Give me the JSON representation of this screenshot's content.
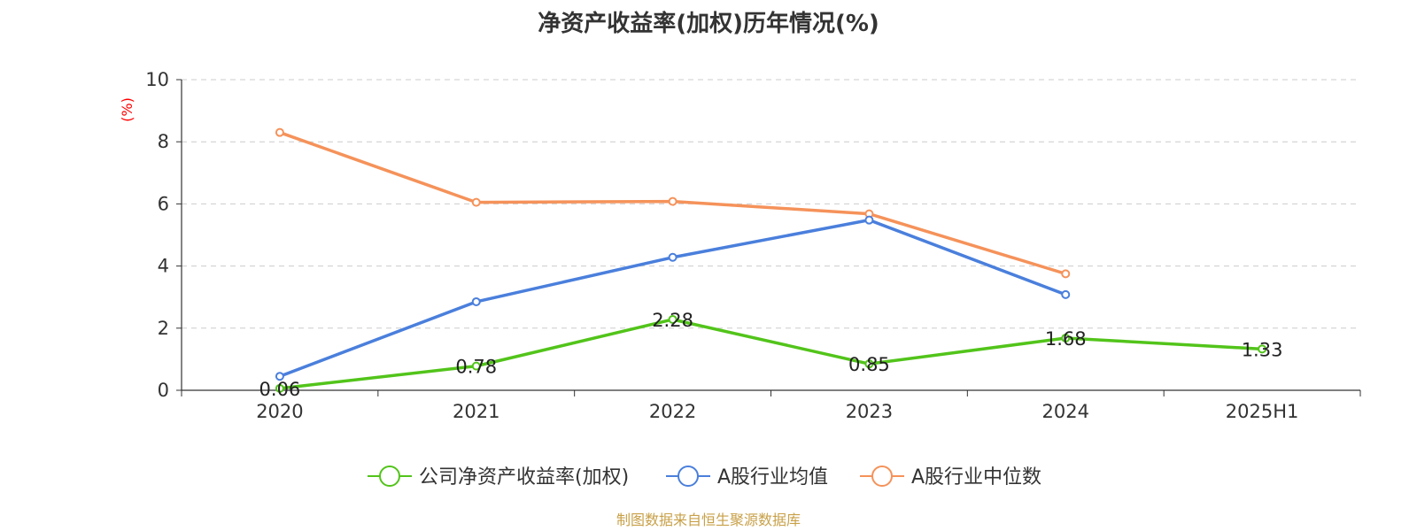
{
  "colors": {
    "company": "#52c41a",
    "industry_mean": "#4a7fdc",
    "industry_median": "#f5925a",
    "axis": "#333333",
    "grid": "#cccccc",
    "ylabel": "#ff0000",
    "source": "#c8a048"
  },
  "chart_data": {
    "type": "line",
    "title": "净资产收益率(加权)历年情况(%)",
    "ylabel": "(%)",
    "xlabel": "",
    "categories": [
      "2020",
      "2021",
      "2022",
      "2023",
      "2024",
      "2025H1"
    ],
    "ylim": [
      0,
      10
    ],
    "yticks": [
      0,
      2,
      4,
      6,
      8,
      10
    ],
    "grid": true,
    "legend_position": "bottom",
    "series": [
      {
        "name": "公司净资产收益率(加权)",
        "color_key": "company",
        "values": [
          0.06,
          0.78,
          2.28,
          0.85,
          1.68,
          1.33
        ],
        "labels": [
          "0.06",
          "0.78",
          "2.28",
          "0.85",
          "1.68",
          "1.33"
        ],
        "show_labels": true
      },
      {
        "name": "A股行业均值",
        "color_key": "industry_mean",
        "values": [
          0.45,
          2.85,
          4.28,
          5.48,
          3.08,
          null
        ],
        "show_labels": false
      },
      {
        "name": "A股行业中位数",
        "color_key": "industry_median",
        "values": [
          8.3,
          6.05,
          6.08,
          5.68,
          3.75,
          null
        ],
        "show_labels": false
      }
    ],
    "source_note": "制图数据来自恒生聚源数据库"
  }
}
